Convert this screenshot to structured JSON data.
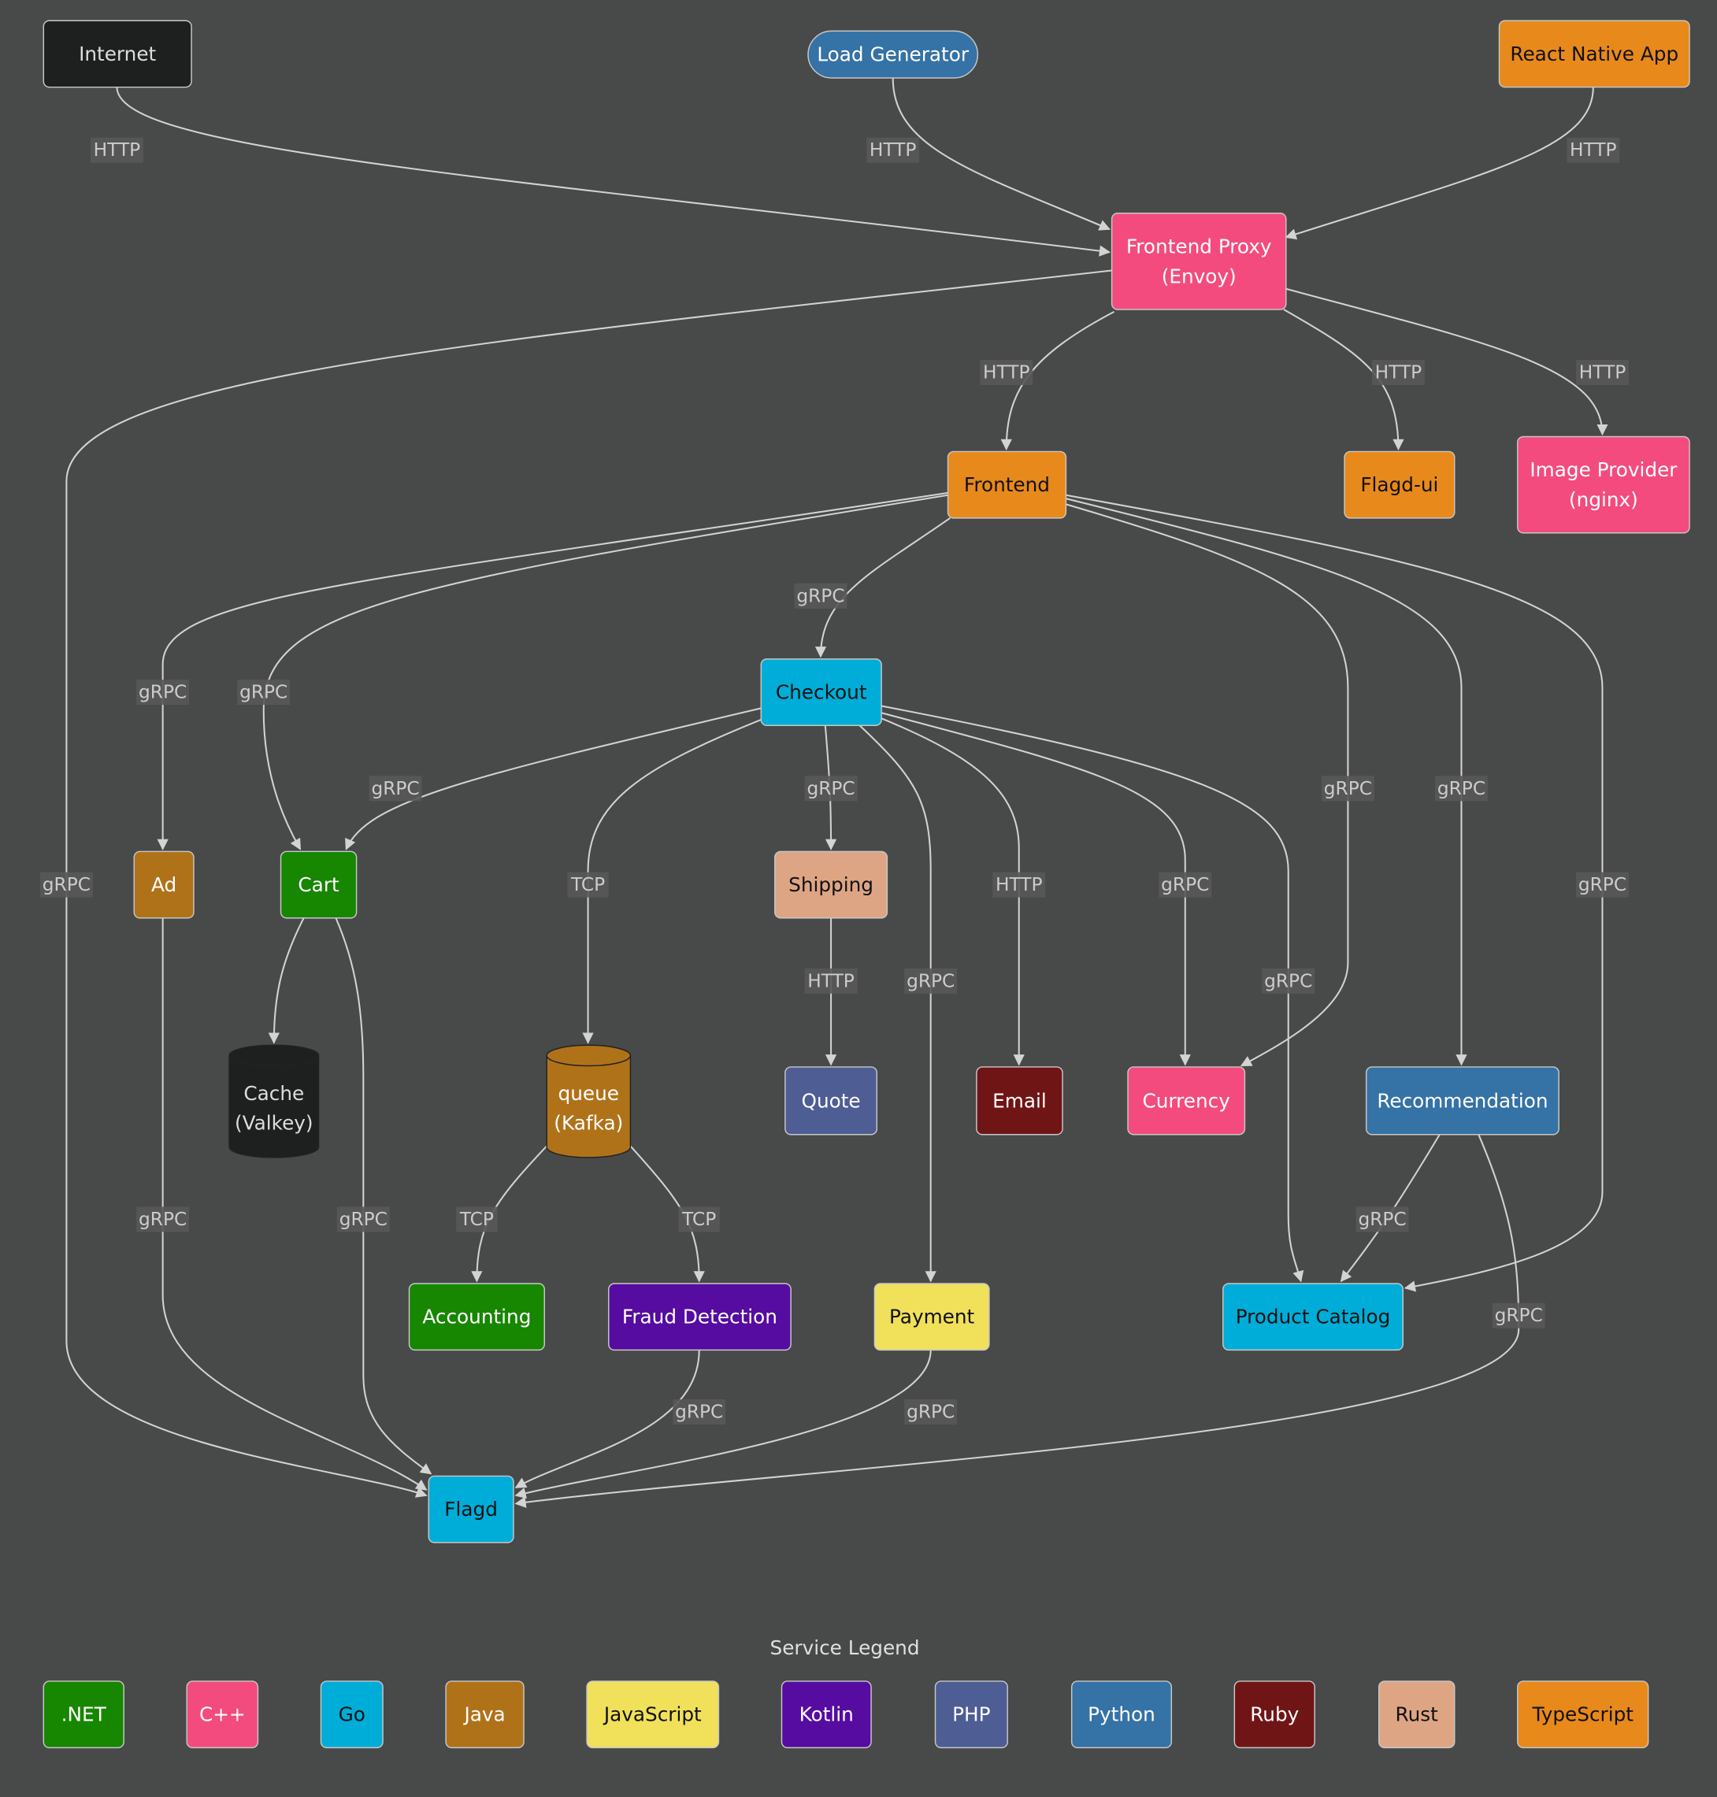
{
  "colors": {
    "background": "#484949",
    "edge": "#d3d3d3",
    ".NET": "#178600",
    "C++": "#f34b7d",
    "Go": "#00add8",
    "Java": "#b07219",
    "JavaScript": "#f1e05a",
    "Kotlin": "#560ba1",
    "PHP": "#4f5d95",
    "Python": "#3572a5",
    "Ruby": "#701516",
    "Rust": "#dea584",
    "TypeScript": "#e8891b",
    "external": "#1e1f1f"
  },
  "nodes": {
    "internet": {
      "label": [
        "Internet"
      ],
      "lang": "external"
    },
    "loadgen": {
      "label": [
        "Load Generator"
      ],
      "lang": "Python"
    },
    "reactnative": {
      "label": [
        "React Native App"
      ],
      "lang": "TypeScript"
    },
    "frontendproxy": {
      "label": [
        "Frontend Proxy",
        "(Envoy)"
      ],
      "lang": "C++"
    },
    "frontend": {
      "label": [
        "Frontend"
      ],
      "lang": "TypeScript"
    },
    "flagdui": {
      "label": [
        "Flagd-ui"
      ],
      "lang": "TypeScript"
    },
    "imageprovider": {
      "label": [
        "Image Provider",
        "(nginx)"
      ],
      "lang": "C++"
    },
    "checkout": {
      "label": [
        "Checkout"
      ],
      "lang": "Go"
    },
    "ad": {
      "label": [
        "Ad"
      ],
      "lang": "Java"
    },
    "cart": {
      "label": [
        "Cart"
      ],
      "lang": ".NET"
    },
    "shipping": {
      "label": [
        "Shipping"
      ],
      "lang": "Rust"
    },
    "cache": {
      "label": [
        "Cache",
        "(Valkey)"
      ],
      "lang": "external"
    },
    "queue": {
      "label": [
        "queue",
        "(Kafka)"
      ],
      "lang": "Java"
    },
    "quote": {
      "label": [
        "Quote"
      ],
      "lang": "PHP"
    },
    "email": {
      "label": [
        "Email"
      ],
      "lang": "Ruby"
    },
    "currency": {
      "label": [
        "Currency"
      ],
      "lang": "C++"
    },
    "recommendation": {
      "label": [
        "Recommendation"
      ],
      "lang": "Python"
    },
    "accounting": {
      "label": [
        "Accounting"
      ],
      "lang": ".NET"
    },
    "frauddetection": {
      "label": [
        "Fraud Detection"
      ],
      "lang": "Kotlin"
    },
    "payment": {
      "label": [
        "Payment"
      ],
      "lang": "JavaScript"
    },
    "productcatalog": {
      "label": [
        "Product Catalog"
      ],
      "lang": "Go"
    },
    "flagd": {
      "label": [
        "Flagd"
      ],
      "lang": "Go"
    }
  },
  "edges": [
    {
      "from": "internet",
      "to": "frontendproxy",
      "label": "HTTP"
    },
    {
      "from": "loadgen",
      "to": "frontendproxy",
      "label": "HTTP"
    },
    {
      "from": "reactnative",
      "to": "frontendproxy",
      "label": "HTTP"
    },
    {
      "from": "frontendproxy",
      "to": "flagd",
      "label": "gRPC"
    },
    {
      "from": "frontendproxy",
      "to": "frontend",
      "label": "HTTP"
    },
    {
      "from": "frontendproxy",
      "to": "flagdui",
      "label": "HTTP"
    },
    {
      "from": "frontendproxy",
      "to": "imageprovider",
      "label": "HTTP"
    },
    {
      "from": "frontend",
      "to": "ad",
      "label": "gRPC"
    },
    {
      "from": "frontend",
      "to": "cart",
      "label": "gRPC"
    },
    {
      "from": "frontend",
      "to": "checkout",
      "label": "gRPC"
    },
    {
      "from": "frontend",
      "to": "currency",
      "label": "gRPC"
    },
    {
      "from": "frontend",
      "to": "recommendation",
      "label": "gRPC"
    },
    {
      "from": "frontend",
      "to": "productcatalog",
      "label": "gRPC"
    },
    {
      "from": "checkout",
      "to": "cart",
      "label": "gRPC"
    },
    {
      "from": "checkout",
      "to": "queue",
      "label": "TCP"
    },
    {
      "from": "checkout",
      "to": "shipping",
      "label": "gRPC"
    },
    {
      "from": "checkout",
      "to": "payment",
      "label": "gRPC"
    },
    {
      "from": "checkout",
      "to": "email",
      "label": "HTTP"
    },
    {
      "from": "checkout",
      "to": "currency",
      "label": "gRPC"
    },
    {
      "from": "checkout",
      "to": "productcatalog",
      "label": "gRPC"
    },
    {
      "from": "shipping",
      "to": "quote",
      "label": "HTTP"
    },
    {
      "from": "cart",
      "to": "cache",
      "label": ""
    },
    {
      "from": "ad",
      "to": "flagd",
      "label": "gRPC"
    },
    {
      "from": "cart",
      "to": "flagd",
      "label": "gRPC"
    },
    {
      "from": "queue",
      "to": "accounting",
      "label": "TCP"
    },
    {
      "from": "queue",
      "to": "frauddetection",
      "label": "TCP"
    },
    {
      "from": "frauddetection",
      "to": "flagd",
      "label": "gRPC"
    },
    {
      "from": "payment",
      "to": "flagd",
      "label": "gRPC"
    },
    {
      "from": "recommendation",
      "to": "productcatalog",
      "label": "gRPC"
    },
    {
      "from": "recommendation",
      "to": "flagd",
      "label": "gRPC"
    }
  ],
  "legend": {
    "title": "Service Legend",
    "items": [
      ".NET",
      "C++",
      "Go",
      "Java",
      "JavaScript",
      "Kotlin",
      "PHP",
      "Python",
      "Ruby",
      "Rust",
      "TypeScript"
    ]
  }
}
